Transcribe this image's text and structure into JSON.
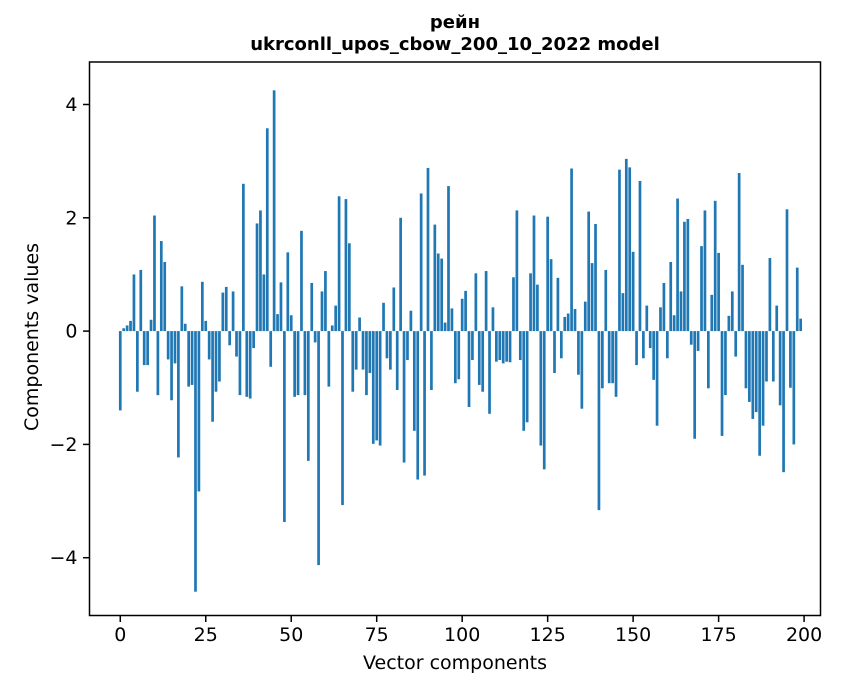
{
  "title": {
    "line1": "рейн",
    "line2": "ukrconll_upos_cbow_200_10_2022 model"
  },
  "chart_data": {
    "type": "bar",
    "title": "рейн\nukrconll_upos_cbow_200_10_2022 model",
    "xlabel": "Vector components",
    "ylabel": "Components values",
    "bar_color": "#1f77b4",
    "spine_color": "#000000",
    "background": "#ffffff",
    "grid": false,
    "legend": "none",
    "x_ticks": [
      0,
      25,
      50,
      75,
      100,
      125,
      150,
      175,
      200
    ],
    "y_ticks": [
      -4,
      -2,
      0,
      2,
      4
    ],
    "xlim": [
      -9.0,
      204.8
    ],
    "ylim": [
      -5.02,
      4.75
    ],
    "x_description": "component index 0..199",
    "values": [
      -1.4,
      0.05,
      0.1,
      0.18,
      1.0,
      -1.07,
      1.08,
      -0.6,
      -0.6,
      0.2,
      2.04,
      -1.13,
      1.59,
      1.22,
      -0.5,
      -1.22,
      -0.57,
      -2.23,
      0.79,
      0.13,
      -0.98,
      -0.95,
      -4.6,
      -2.83,
      0.87,
      0.18,
      -0.5,
      -1.6,
      -1.07,
      -0.89,
      0.68,
      0.78,
      -0.25,
      0.7,
      -0.45,
      -1.13,
      2.6,
      -1.16,
      -1.19,
      -0.3,
      1.9,
      2.13,
      1.0,
      3.58,
      -0.63,
      4.25,
      0.3,
      0.86,
      -3.37,
      1.39,
      0.28,
      -1.16,
      -1.13,
      1.77,
      -1.13,
      -2.29,
      0.85,
      -0.2,
      -4.13,
      0.7,
      1.06,
      -0.98,
      0.1,
      0.45,
      2.38,
      -3.07,
      2.33,
      1.55,
      -1.07,
      -0.68,
      0.24,
      -0.68,
      -1.13,
      -0.74,
      -1.99,
      -1.93,
      -2.02,
      0.5,
      -0.48,
      -0.68,
      0.77,
      -1.04,
      2.0,
      -2.32,
      -0.51,
      0.36,
      -1.76,
      -2.62,
      2.43,
      -2.55,
      2.88,
      -1.04,
      1.88,
      1.37,
      1.28,
      0.15,
      2.56,
      0.4,
      -0.92,
      -0.85,
      0.57,
      0.71,
      -1.34,
      -0.51,
      1.02,
      -0.95,
      -1.07,
      1.06,
      -1.46,
      0.42,
      -0.54,
      -0.51,
      -0.57,
      -0.54,
      -0.55,
      0.95,
      2.13,
      -0.51,
      -1.76,
      -1.61,
      1.02,
      2.04,
      0.82,
      -2.02,
      -2.44,
      2.02,
      1.27,
      -0.74,
      0.94,
      -0.48,
      0.25,
      0.31,
      2.87,
      0.39,
      -0.77,
      -1.37,
      0.52,
      2.11,
      1.2,
      1.89,
      -3.16,
      -1.01,
      1.08,
      -0.92,
      -0.92,
      -1.16,
      2.85,
      0.67,
      3.04,
      2.89,
      1.4,
      -0.6,
      2.65,
      -0.48,
      0.45,
      -0.3,
      -0.86,
      -1.67,
      0.42,
      0.85,
      -0.48,
      1.22,
      0.28,
      2.34,
      0.7,
      1.93,
      1.98,
      -0.24,
      -1.9,
      -0.35,
      1.5,
      2.13,
      -1.01,
      0.64,
      2.3,
      1.38,
      -1.85,
      -1.13,
      0.27,
      0.7,
      -0.45,
      2.79,
      1.17,
      -1.01,
      -1.25,
      -1.55,
      -1.43,
      -2.2,
      -1.67,
      -0.89,
      1.29,
      -0.89,
      0.45,
      -1.31,
      -2.49,
      2.15,
      -1.0,
      -2.0,
      1.12,
      0.22
    ]
  }
}
